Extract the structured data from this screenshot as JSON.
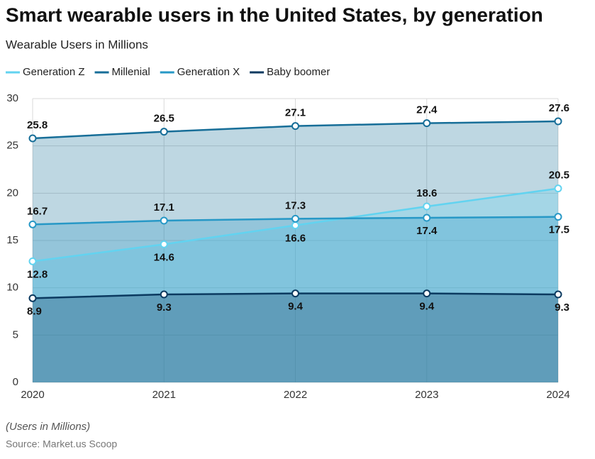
{
  "chart_data": {
    "type": "area",
    "title": "Smart wearable users in the United States, by generation",
    "subtitle": "Wearable Users in Millions",
    "note": "(Users in Millions)",
    "source": "Source: Market.us Scoop",
    "categories": [
      "2020",
      "2021",
      "2022",
      "2023",
      "2024"
    ],
    "series": [
      {
        "name": "Generation Z",
        "color": "#62d3f0",
        "values": [
          12.8,
          14.6,
          16.6,
          18.6,
          20.5
        ]
      },
      {
        "name": "Millenial",
        "color": "#176e98",
        "values": [
          25.8,
          26.5,
          27.1,
          27.4,
          27.6
        ]
      },
      {
        "name": "Generation X",
        "color": "#2798c6",
        "values": [
          16.7,
          17.1,
          17.3,
          17.4,
          17.5
        ]
      },
      {
        "name": "Baby boomer",
        "color": "#0b3a60",
        "values": [
          8.9,
          9.3,
          9.4,
          9.4,
          9.3
        ]
      }
    ],
    "ylim": [
      0,
      30
    ],
    "yticks": [
      0,
      5,
      10,
      15,
      20,
      25,
      30
    ],
    "grid": true
  }
}
